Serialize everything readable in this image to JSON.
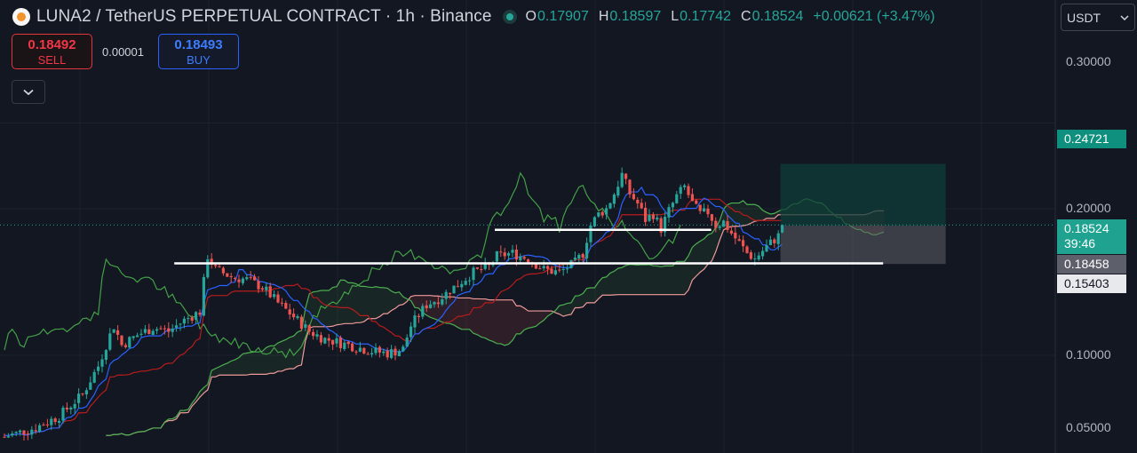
{
  "header": {
    "title": "LUNA2 / TetherUS PERPETUAL CONTRACT · 1h · Binance",
    "ohlc": [
      {
        "key": "O",
        "value": "0.17907"
      },
      {
        "key": "H",
        "value": "0.18597"
      },
      {
        "key": "L",
        "value": "0.17742"
      },
      {
        "key": "C",
        "value": "0.18524"
      }
    ],
    "change": "+0.00621 (+3.47%)"
  },
  "trade": {
    "sell_price": "0.18492",
    "sell_label": "SELL",
    "buy_price": "0.18493",
    "buy_label": "BUY",
    "spread": "0.00001"
  },
  "currency_select": "USDT",
  "price_axis": {
    "ticks": [
      "0.30000",
      "0.20000",
      "0.10000",
      "0.05000"
    ]
  },
  "badges": [
    {
      "text": "0.24721",
      "kind": "target",
      "value": 0.24721
    },
    {
      "text": "0.18524",
      "subtext": "39:46",
      "kind": "last",
      "value": 0.18524
    },
    {
      "text": "0.18458",
      "kind": "entry",
      "value": 0.18458
    },
    {
      "text": "0.15403",
      "kind": "stop",
      "value": 0.15403
    }
  ],
  "colors": {
    "up": "#26a69a",
    "down": "#ef5350",
    "bg": "#131722",
    "tenkan": "#2962ff",
    "kijun": "#b71c1c",
    "span_a": "#4caf50",
    "span_b": "#ef9a9a",
    "lagging": "#43a047",
    "target_zone": "#0f3d38",
    "stop_zone": "#5c5f66"
  },
  "chart_data": {
    "type": "candlestick",
    "scale": "log",
    "ylim": [
      0.045,
      0.32
    ],
    "price_ticks": [
      0.3,
      0.2,
      0.1,
      0.05
    ],
    "bars": 130,
    "ohlc_close_path": [
      [
        0,
        0.068
      ],
      [
        8,
        0.071
      ],
      [
        14,
        0.075
      ],
      [
        20,
        0.083
      ],
      [
        24,
        0.095
      ],
      [
        28,
        0.115
      ],
      [
        30,
        0.105
      ],
      [
        34,
        0.11
      ],
      [
        38,
        0.114
      ],
      [
        42,
        0.112
      ],
      [
        46,
        0.118
      ],
      [
        50,
        0.123
      ],
      [
        52,
        0.16
      ],
      [
        54,
        0.15
      ],
      [
        58,
        0.145
      ],
      [
        62,
        0.143
      ],
      [
        66,
        0.138
      ],
      [
        70,
        0.128
      ],
      [
        74,
        0.12
      ],
      [
        78,
        0.112
      ],
      [
        82,
        0.108
      ],
      [
        86,
        0.106
      ],
      [
        90,
        0.104
      ],
      [
        94,
        0.102
      ],
      [
        98,
        0.101
      ],
      [
        102,
        0.103
      ],
      [
        104,
        0.115
      ],
      [
        108,
        0.127
      ],
      [
        112,
        0.132
      ],
      [
        116,
        0.14
      ],
      [
        120,
        0.148
      ],
      [
        124,
        0.152
      ],
      [
        126,
        0.16
      ],
      [
        130,
        0.162
      ],
      [
        134,
        0.158
      ],
      [
        138,
        0.15
      ],
      [
        142,
        0.148
      ],
      [
        146,
        0.155
      ],
      [
        148,
        0.162
      ],
      [
        150,
        0.185
      ],
      [
        152,
        0.195
      ],
      [
        154,
        0.2
      ],
      [
        156,
        0.215
      ],
      [
        158,
        0.235
      ],
      [
        160,
        0.215
      ],
      [
        162,
        0.205
      ],
      [
        164,
        0.19
      ],
      [
        166,
        0.195
      ],
      [
        168,
        0.182
      ],
      [
        170,
        0.198
      ],
      [
        172,
        0.212
      ],
      [
        174,
        0.222
      ],
      [
        176,
        0.205
      ],
      [
        178,
        0.195
      ],
      [
        180,
        0.197
      ],
      [
        182,
        0.185
      ],
      [
        184,
        0.188
      ],
      [
        186,
        0.178
      ],
      [
        188,
        0.17
      ],
      [
        190,
        0.162
      ],
      [
        192,
        0.158
      ],
      [
        194,
        0.164
      ],
      [
        196,
        0.17
      ],
      [
        198,
        0.176
      ],
      [
        199,
        0.18524
      ]
    ],
    "horizontal_lines": [
      {
        "price": 0.181,
        "from_bar": 130,
        "to_bar": 199
      },
      {
        "price": 0.1545,
        "from_bar": 48,
        "to_bar": 243
      }
    ],
    "position": {
      "entry": 0.18458,
      "target": 0.24721,
      "stop": 0.15403
    }
  }
}
